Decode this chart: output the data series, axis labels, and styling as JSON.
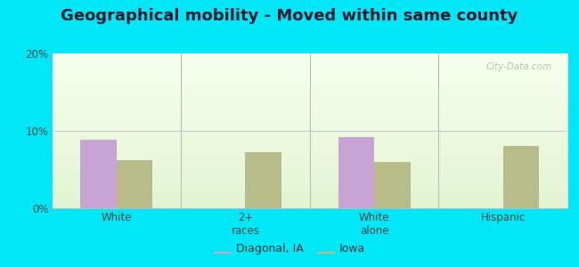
{
  "title": "Geographical mobility - Moved within same county",
  "categories": [
    "White",
    "2+\nraces",
    "White\nalone",
    "Hispanic"
  ],
  "diagonal_values": [
    8.8,
    0,
    9.2,
    0
  ],
  "iowa_values": [
    6.2,
    7.2,
    6.0,
    8.0
  ],
  "bar_color_diagonal": "#c8a4d4",
  "bar_color_iowa": "#b8bc88",
  "ylim": [
    0,
    20
  ],
  "yticks": [
    0,
    10,
    20
  ],
  "yticklabels": [
    "0%",
    "10%",
    "20%"
  ],
  "legend_labels": [
    "Diagonal, IA",
    "Iowa"
  ],
  "background_outer": "#00e8f8",
  "title_fontsize": 13,
  "bar_width": 0.28,
  "watermark": "City-Data.com"
}
